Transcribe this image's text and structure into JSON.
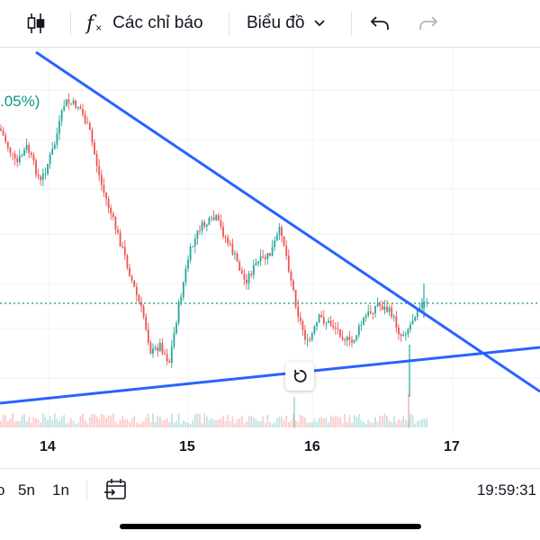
{
  "toolbar": {
    "indicators_label": "Các chỉ báo",
    "chart_type_label": "Biểu đồ",
    "icons": [
      "candles-icon",
      "function-icon",
      "chevron-down-icon",
      "undo-icon",
      "redo-icon"
    ]
  },
  "chart": {
    "change_pct": ".05%)",
    "time_labels": [
      "14",
      "15",
      "16",
      "17"
    ],
    "colors": {
      "up": "#26a69a",
      "down": "#ef5350",
      "trendline": "#2962ff",
      "price_line": "#089981",
      "grid": "#f0f3fa"
    }
  },
  "bottom_bar": {
    "ranges": [
      "o",
      "5n",
      "1n"
    ],
    "time": "19:59:31",
    "icons": [
      "calendar-goto-icon"
    ]
  }
}
